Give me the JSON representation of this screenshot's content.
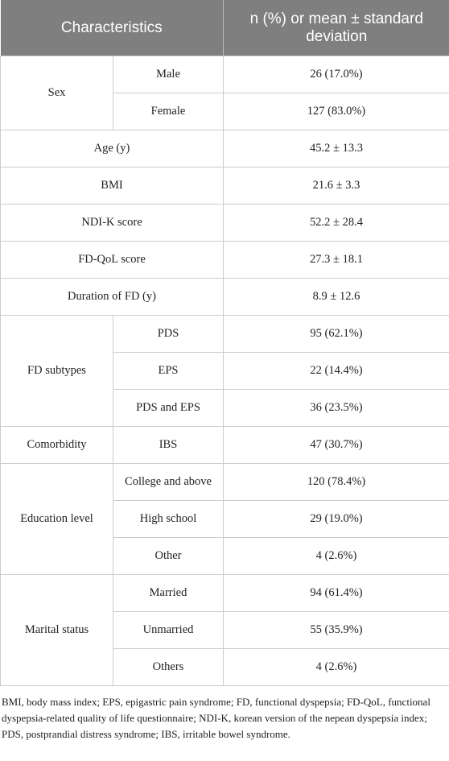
{
  "table": {
    "header": [
      "Characteristics",
      "n (%) or mean ± standard deviation"
    ],
    "groups": [
      {
        "label": "Sex",
        "rows": [
          [
            "Male",
            "26 (17.0%)"
          ],
          [
            "Female",
            "127 (83.0%)"
          ]
        ]
      },
      {
        "label": "Age (y)",
        "value": "45.2 ± 13.3"
      },
      {
        "label": "BMI",
        "value": "21.6 ± 3.3"
      },
      {
        "label": "NDI-K score",
        "value": "52.2 ± 28.4"
      },
      {
        "label": "FD-QoL score",
        "value": "27.3 ± 18.1"
      },
      {
        "label": "Duration of FD (y)",
        "value": "8.9 ± 12.6"
      },
      {
        "label": "FD subtypes",
        "rows": [
          [
            "PDS",
            "95 (62.1%)"
          ],
          [
            "EPS",
            "22 (14.4%)"
          ],
          [
            "PDS and EPS",
            "36 (23.5%)"
          ]
        ]
      },
      {
        "label": "Comorbidity",
        "rows": [
          [
            "IBS",
            "47 (30.7%)"
          ]
        ]
      },
      {
        "label": "Education level",
        "rows": [
          [
            "College and above",
            "120 (78.4%)"
          ],
          [
            "High school",
            "29 (19.0%)"
          ],
          [
            "Other",
            "4 (2.6%)"
          ]
        ]
      },
      {
        "label": "Marital status",
        "rows": [
          [
            "Married",
            "94 (61.4%)"
          ],
          [
            "Unmarried",
            "55 (35.9%)"
          ],
          [
            "Others",
            "4 (2.6%)"
          ]
        ]
      }
    ]
  },
  "footnote": "BMI, body mass index; EPS, epigastric pain syndrome; FD, functional dyspepsia; FD-QoL, functional dyspepsia-related quality of life questionnaire; NDI-K, korean version of the nepean dyspepsia index; PDS, postprandial distress syndrome; IBS, irritable bowel syndrome."
}
